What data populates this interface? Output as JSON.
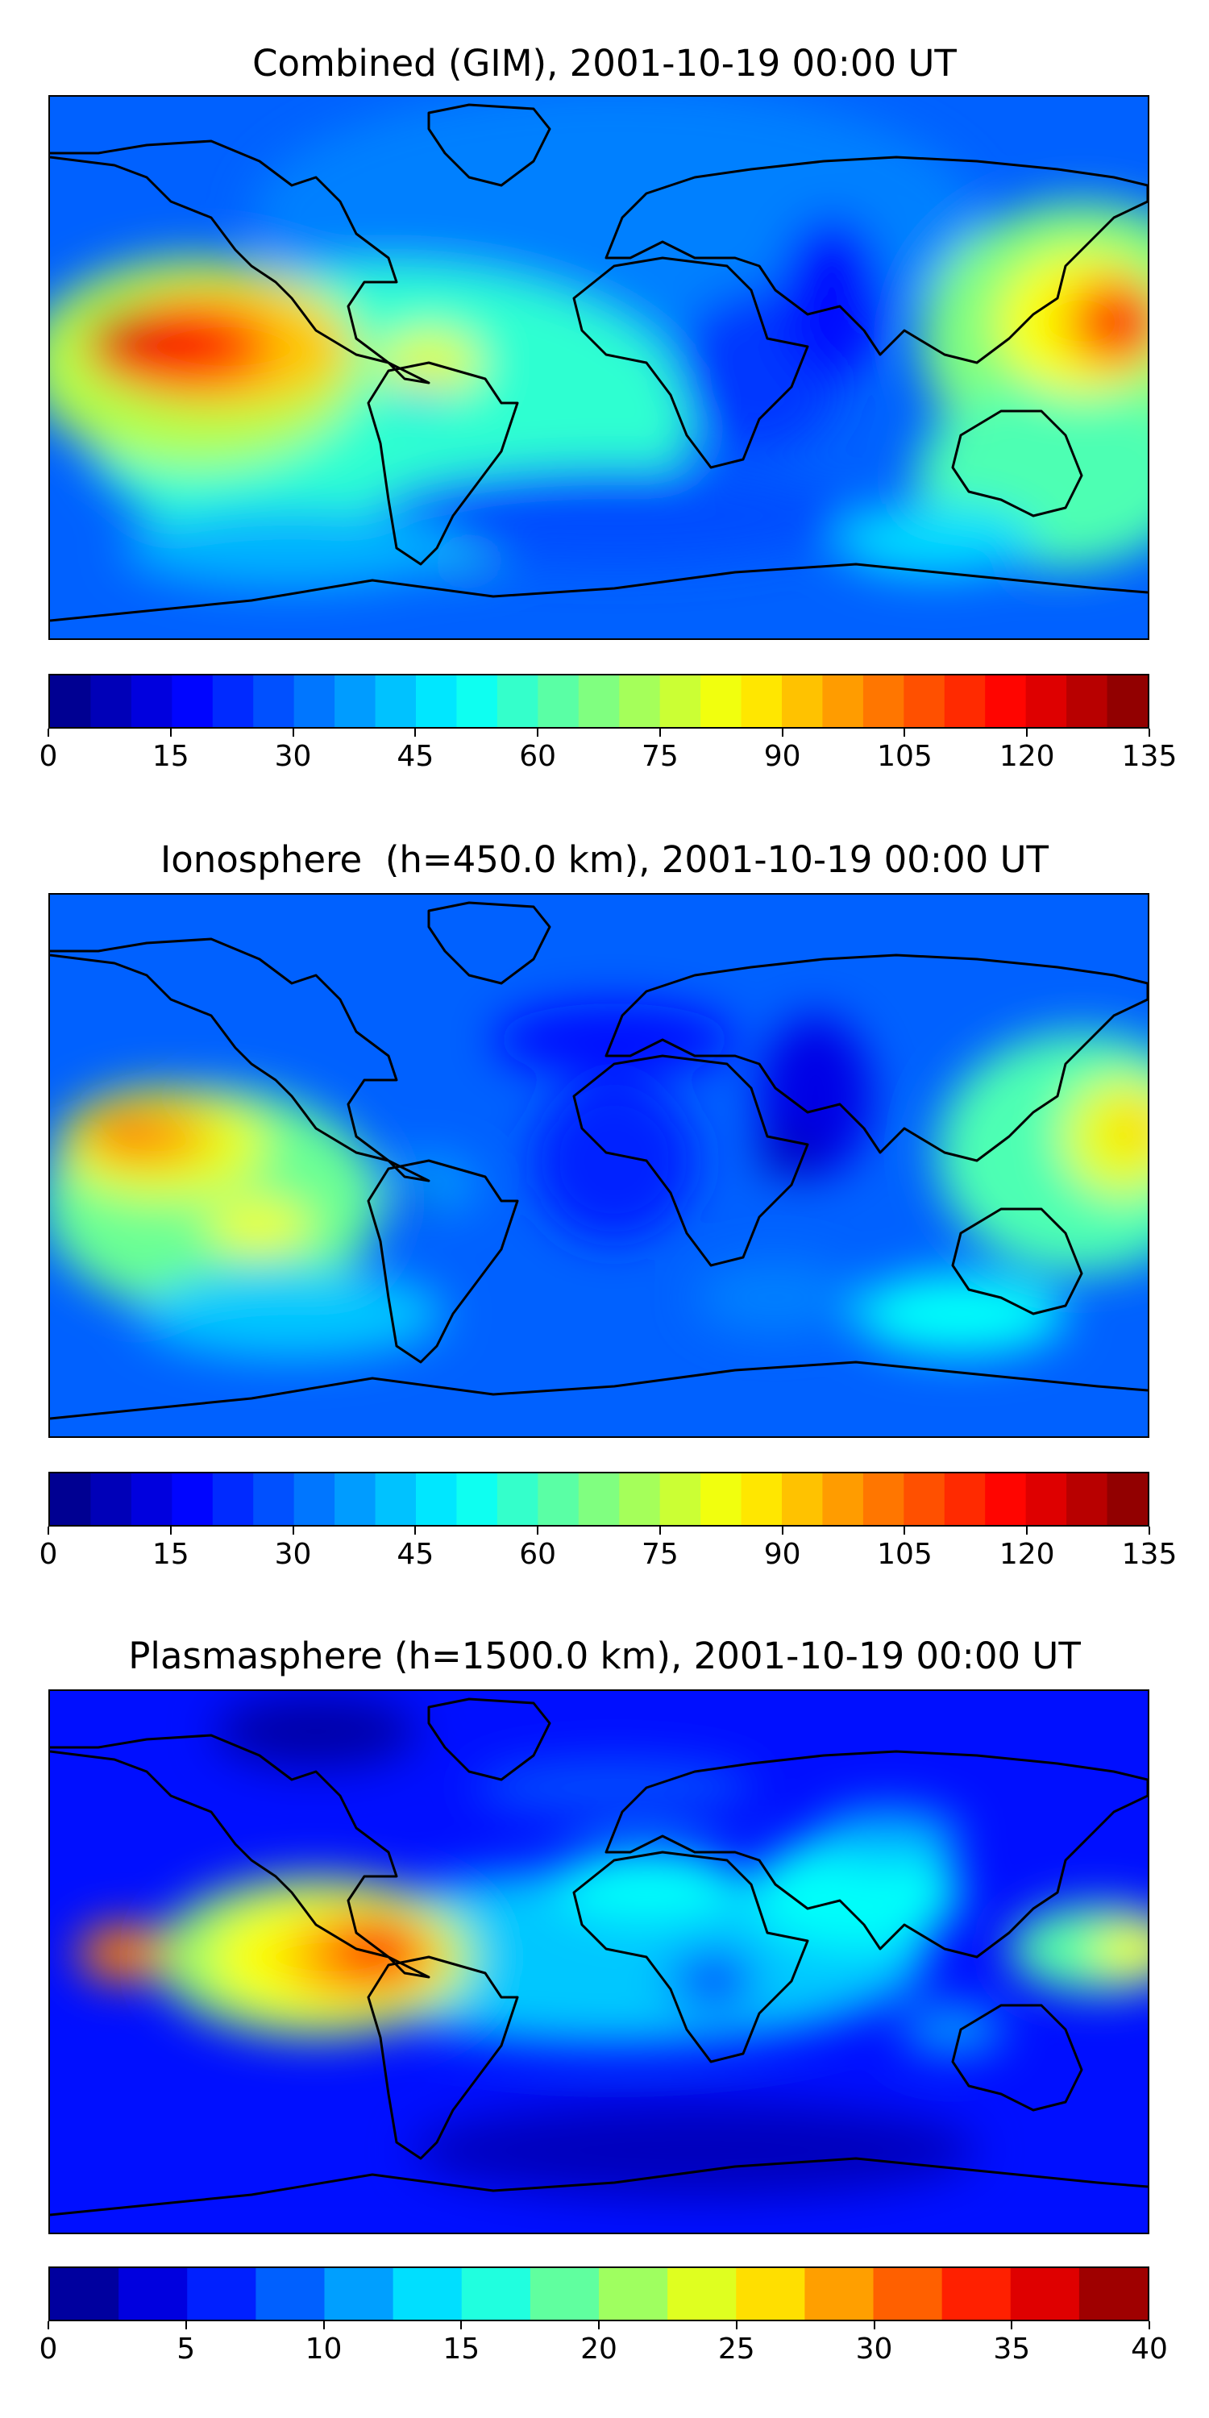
{
  "panels": [
    {
      "title": "Combined (GIM), 2001-10-19 00:00 UT",
      "colorbar": {
        "min": 0,
        "max": 135,
        "step": 5,
        "ticks": [
          "0",
          "15",
          "30",
          "45",
          "60",
          "75",
          "90",
          "105",
          "120",
          "135"
        ]
      },
      "field": "combined"
    },
    {
      "title": "Ionosphere  (h=450.0 km), 2001-10-19 00:00 UT",
      "colorbar": {
        "min": 0,
        "max": 135,
        "step": 5,
        "ticks": [
          "0",
          "15",
          "30",
          "45",
          "60",
          "75",
          "90",
          "105",
          "120",
          "135"
        ]
      },
      "field": "ionosphere"
    },
    {
      "title": "Plasmasphere (h=1500.0 km), 2001-10-19 00:00 UT",
      "colorbar": {
        "min": 0,
        "max": 40,
        "step": 2.5,
        "ticks": [
          "0",
          "5",
          "10",
          "15",
          "20",
          "25",
          "30",
          "35",
          "40"
        ]
      },
      "field": "plasmasphere"
    }
  ],
  "colormap": "jet",
  "coastline_color": "#000000"
}
